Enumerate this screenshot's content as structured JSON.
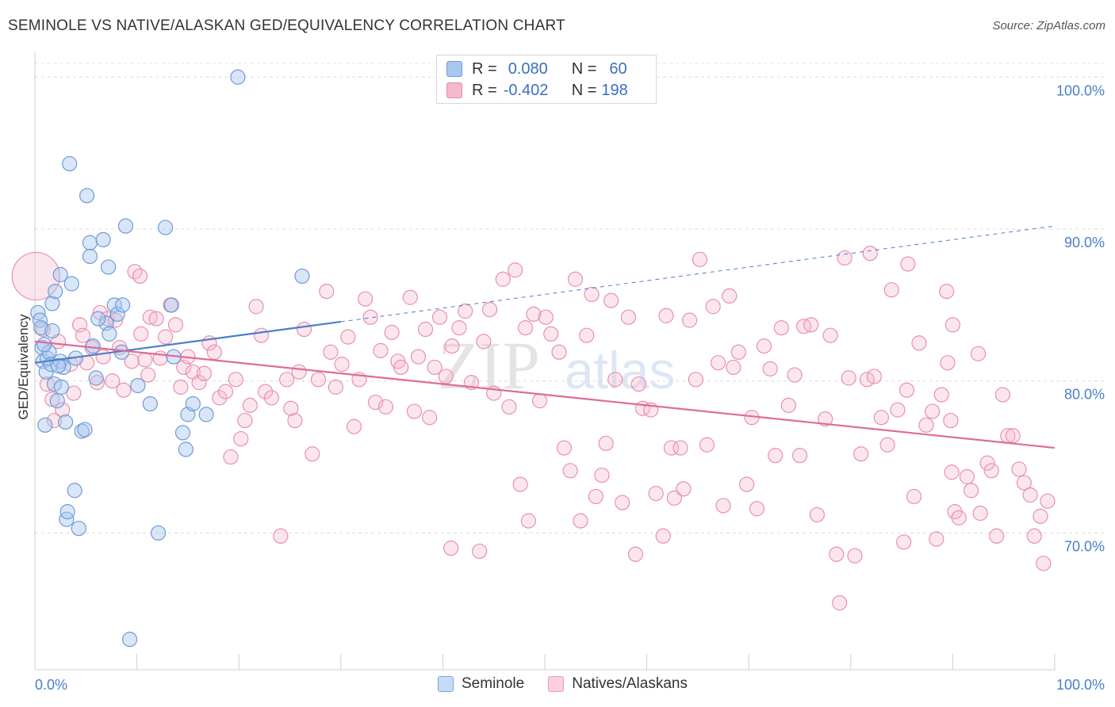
{
  "title": "SEMINOLE VS NATIVE/ALASKAN GED/EQUIVALENCY CORRELATION CHART",
  "source": "Source: ZipAtlas.com",
  "watermark": {
    "zip": "ZIP",
    "atlas": "atlas"
  },
  "legend": {
    "rows": [
      {
        "r_label": "R =",
        "r_value": "0.080",
        "n_label": "N =",
        "n_value": "60",
        "color": "#a8c8f0"
      },
      {
        "r_label": "R =",
        "r_value": "-0.402",
        "n_label": "N =",
        "n_value": "198",
        "color": "#f5b8cc"
      }
    ]
  },
  "bottom_legend": [
    "Seminole",
    "Natives/Alaskans"
  ],
  "colors": {
    "blue": "#4a7fc8",
    "pink": "#e06b97",
    "blue_fill": "#a8c8f0",
    "pink_fill": "#f5b8cc"
  },
  "chart_data": {
    "type": "scatter",
    "title": "SEMINOLE VS NATIVE/ALASKAN GED/EQUIVALENCY CORRELATION CHART",
    "xlabel": "",
    "ylabel": "GED/Equivalency",
    "x_tick_labels": [
      "0.0%",
      "100.0%"
    ],
    "y_tick_labels": [
      "100.0%",
      "90.0%",
      "80.0%",
      "70.0%"
    ],
    "xlim": [
      0,
      100
    ],
    "ylim": [
      61,
      100.9
    ],
    "grid": true,
    "series": [
      {
        "name": "Seminole",
        "r": 0.08,
        "n": 60,
        "trend": {
          "x": [
            0,
            30
          ],
          "y": [
            81.2,
            83.9
          ],
          "extended_to": [
            100,
            90.2
          ]
        },
        "points": [
          [
            0.3,
            84.5
          ],
          [
            0.5,
            84.0
          ],
          [
            0.6,
            83.5
          ],
          [
            0.7,
            82.2
          ],
          [
            0.8,
            81.3
          ],
          [
            1.0,
            77.1
          ],
          [
            1.1,
            80.6
          ],
          [
            1.2,
            81.5
          ],
          [
            1.4,
            81.9
          ],
          [
            1.6,
            81.1
          ],
          [
            1.7,
            83.3
          ],
          [
            1.7,
            85.1
          ],
          [
            1.9,
            79.8
          ],
          [
            2.0,
            85.9
          ],
          [
            2.2,
            78.7
          ],
          [
            2.5,
            81.3
          ],
          [
            2.5,
            87.0
          ],
          [
            2.6,
            79.6
          ],
          [
            2.8,
            80.9
          ],
          [
            3.0,
            77.3
          ],
          [
            3.1,
            70.9
          ],
          [
            3.2,
            71.4
          ],
          [
            3.4,
            94.3
          ],
          [
            3.6,
            86.4
          ],
          [
            3.9,
            72.8
          ],
          [
            4.0,
            81.5
          ],
          [
            4.3,
            70.3
          ],
          [
            4.6,
            76.7
          ],
          [
            4.9,
            76.8
          ],
          [
            5.1,
            92.2
          ],
          [
            5.4,
            88.2
          ],
          [
            5.4,
            89.1
          ],
          [
            5.7,
            82.3
          ],
          [
            6.0,
            80.2
          ],
          [
            6.7,
            89.3
          ],
          [
            7.0,
            83.8
          ],
          [
            7.2,
            87.5
          ],
          [
            7.3,
            83.1
          ],
          [
            7.8,
            85.0
          ],
          [
            8.1,
            84.4
          ],
          [
            8.5,
            81.9
          ],
          [
            8.6,
            85.0
          ],
          [
            8.9,
            90.2
          ],
          [
            10.1,
            79.7
          ],
          [
            11.3,
            78.5
          ],
          [
            12.1,
            70.0
          ],
          [
            12.8,
            90.1
          ],
          [
            13.4,
            85.0
          ],
          [
            13.6,
            81.6
          ],
          [
            14.5,
            76.6
          ],
          [
            14.8,
            75.5
          ],
          [
            15.0,
            77.8
          ],
          [
            15.5,
            78.5
          ],
          [
            16.8,
            77.8
          ],
          [
            19.9,
            100.0
          ],
          [
            26.2,
            86.9
          ],
          [
            9.3,
            63.0
          ],
          [
            0.9,
            82.4
          ],
          [
            2.3,
            81.0
          ],
          [
            6.2,
            84.1
          ]
        ]
      },
      {
        "name": "Natives/Alaskans",
        "r": -0.402,
        "n": 198,
        "trend": {
          "x": [
            0,
            100
          ],
          "y": [
            82.6,
            75.6
          ]
        },
        "points": [
          [
            0.1,
            86.9
          ],
          [
            0.8,
            83.4
          ],
          [
            1.2,
            79.8
          ],
          [
            1.7,
            78.8
          ],
          [
            1.9,
            77.4
          ],
          [
            2.3,
            82.6
          ],
          [
            2.7,
            78.1
          ],
          [
            3.5,
            81.1
          ],
          [
            3.8,
            79.2
          ],
          [
            4.4,
            83.7
          ],
          [
            4.7,
            83.0
          ],
          [
            5.1,
            81.2
          ],
          [
            5.6,
            82.2
          ],
          [
            6.1,
            79.9
          ],
          [
            6.4,
            84.5
          ],
          [
            6.7,
            81.6
          ],
          [
            7.1,
            84.1
          ],
          [
            7.6,
            80.0
          ],
          [
            7.9,
            84.0
          ],
          [
            8.3,
            82.2
          ],
          [
            8.7,
            79.4
          ],
          [
            9.5,
            81.3
          ],
          [
            9.8,
            87.2
          ],
          [
            10.3,
            86.9
          ],
          [
            10.4,
            83.1
          ],
          [
            10.8,
            81.4
          ],
          [
            11.1,
            80.4
          ],
          [
            11.3,
            84.2
          ],
          [
            11.9,
            84.1
          ],
          [
            12.3,
            81.5
          ],
          [
            12.8,
            82.9
          ],
          [
            13.3,
            85.0
          ],
          [
            13.8,
            83.7
          ],
          [
            14.3,
            79.6
          ],
          [
            14.6,
            80.9
          ],
          [
            15.0,
            81.6
          ],
          [
            15.5,
            80.6
          ],
          [
            16.1,
            79.9
          ],
          [
            16.6,
            80.5
          ],
          [
            17.1,
            82.5
          ],
          [
            17.6,
            81.9
          ],
          [
            18.1,
            78.9
          ],
          [
            18.7,
            79.3
          ],
          [
            19.2,
            75.0
          ],
          [
            19.7,
            80.1
          ],
          [
            20.2,
            76.2
          ],
          [
            20.6,
            77.4
          ],
          [
            21.1,
            78.4
          ],
          [
            21.7,
            84.9
          ],
          [
            22.2,
            83.0
          ],
          [
            22.6,
            79.3
          ],
          [
            23.2,
            78.9
          ],
          [
            24.1,
            69.8
          ],
          [
            24.7,
            80.1
          ],
          [
            25.1,
            78.2
          ],
          [
            25.5,
            77.4
          ],
          [
            25.9,
            80.6
          ],
          [
            26.4,
            83.4
          ],
          [
            27.2,
            75.2
          ],
          [
            27.8,
            80.1
          ],
          [
            28.6,
            85.9
          ],
          [
            29.0,
            81.9
          ],
          [
            29.5,
            79.6
          ],
          [
            30.1,
            81.1
          ],
          [
            30.7,
            82.9
          ],
          [
            31.3,
            77.0
          ],
          [
            31.8,
            80.1
          ],
          [
            32.4,
            85.4
          ],
          [
            32.9,
            84.2
          ],
          [
            33.4,
            78.6
          ],
          [
            33.9,
            82.0
          ],
          [
            34.4,
            78.3
          ],
          [
            35.0,
            83.2
          ],
          [
            35.6,
            81.3
          ],
          [
            35.9,
            80.9
          ],
          [
            36.8,
            85.5
          ],
          [
            37.2,
            78.0
          ],
          [
            37.6,
            81.6
          ],
          [
            38.3,
            83.4
          ],
          [
            38.7,
            77.6
          ],
          [
            39.2,
            80.9
          ],
          [
            39.7,
            84.2
          ],
          [
            40.3,
            80.3
          ],
          [
            40.9,
            82.3
          ],
          [
            40.8,
            69.0
          ],
          [
            41.6,
            83.5
          ],
          [
            42.2,
            84.6
          ],
          [
            42.8,
            79.9
          ],
          [
            43.6,
            68.8
          ],
          [
            44.0,
            82.6
          ],
          [
            44.6,
            84.7
          ],
          [
            45.0,
            79.2
          ],
          [
            45.9,
            86.7
          ],
          [
            46.5,
            78.3
          ],
          [
            47.1,
            87.3
          ],
          [
            47.6,
            73.2
          ],
          [
            48.1,
            83.5
          ],
          [
            48.4,
            70.8
          ],
          [
            48.9,
            84.4
          ],
          [
            49.5,
            78.7
          ],
          [
            50.1,
            84.2
          ],
          [
            50.6,
            83.1
          ],
          [
            51.4,
            81.9
          ],
          [
            51.9,
            75.6
          ],
          [
            52.5,
            74.1
          ],
          [
            53.0,
            86.7
          ],
          [
            53.5,
            70.8
          ],
          [
            54.1,
            83.0
          ],
          [
            54.6,
            85.7
          ],
          [
            55.0,
            72.4
          ],
          [
            55.6,
            73.8
          ],
          [
            56.0,
            75.9
          ],
          [
            56.5,
            85.3
          ],
          [
            56.9,
            80.1
          ],
          [
            57.6,
            72.0
          ],
          [
            58.2,
            84.2
          ],
          [
            58.9,
            68.6
          ],
          [
            59.2,
            79.8
          ],
          [
            59.6,
            78.2
          ],
          [
            60.4,
            78.1
          ],
          [
            60.9,
            72.6
          ],
          [
            61.6,
            69.8
          ],
          [
            61.9,
            84.3
          ],
          [
            62.4,
            75.6
          ],
          [
            62.7,
            72.3
          ],
          [
            63.3,
            75.6
          ],
          [
            63.6,
            72.9
          ],
          [
            64.2,
            84.0
          ],
          [
            64.8,
            80.1
          ],
          [
            65.2,
            88.0
          ],
          [
            65.9,
            75.8
          ],
          [
            66.5,
            84.9
          ],
          [
            67.0,
            81.2
          ],
          [
            67.5,
            71.8
          ],
          [
            68.1,
            85.6
          ],
          [
            68.5,
            80.9
          ],
          [
            69.0,
            81.9
          ],
          [
            69.8,
            73.2
          ],
          [
            70.3,
            77.6
          ],
          [
            70.8,
            71.6
          ],
          [
            71.5,
            82.3
          ],
          [
            72.1,
            80.8
          ],
          [
            72.6,
            75.1
          ],
          [
            73.2,
            83.5
          ],
          [
            73.9,
            78.4
          ],
          [
            74.5,
            80.4
          ],
          [
            75.0,
            75.1
          ],
          [
            75.4,
            83.6
          ],
          [
            76.1,
            83.7
          ],
          [
            76.7,
            71.2
          ],
          [
            77.5,
            77.5
          ],
          [
            78.0,
            83.0
          ],
          [
            78.6,
            68.6
          ],
          [
            78.9,
            65.4
          ],
          [
            79.4,
            88.1
          ],
          [
            79.8,
            80.2
          ],
          [
            80.4,
            68.5
          ],
          [
            81.0,
            75.2
          ],
          [
            81.6,
            80.1
          ],
          [
            81.9,
            88.4
          ],
          [
            82.3,
            80.3
          ],
          [
            83.0,
            77.6
          ],
          [
            83.6,
            75.8
          ],
          [
            84.0,
            86.0
          ],
          [
            84.6,
            78.1
          ],
          [
            85.2,
            69.4
          ],
          [
            85.5,
            79.4
          ],
          [
            86.2,
            72.4
          ],
          [
            86.7,
            82.5
          ],
          [
            87.4,
            77.1
          ],
          [
            88.0,
            78.0
          ],
          [
            88.4,
            69.6
          ],
          [
            88.9,
            79.1
          ],
          [
            89.4,
            85.9
          ],
          [
            89.9,
            74.0
          ],
          [
            90.2,
            71.4
          ],
          [
            90.6,
            71.0
          ],
          [
            91.4,
            73.7
          ],
          [
            91.8,
            72.8
          ],
          [
            92.5,
            81.8
          ],
          [
            92.7,
            71.3
          ],
          [
            93.4,
            74.6
          ],
          [
            93.8,
            74.1
          ],
          [
            94.3,
            69.8
          ],
          [
            94.9,
            79.1
          ],
          [
            95.4,
            76.4
          ],
          [
            95.9,
            76.4
          ],
          [
            96.5,
            74.2
          ],
          [
            97.0,
            73.3
          ],
          [
            97.6,
            72.5
          ],
          [
            98.0,
            69.8
          ],
          [
            98.6,
            71.1
          ],
          [
            98.9,
            68.0
          ],
          [
            99.3,
            72.1
          ],
          [
            89.8,
            77.4
          ],
          [
            89.5,
            81.2
          ],
          [
            90.0,
            83.7
          ],
          [
            85.6,
            87.7
          ]
        ]
      }
    ]
  }
}
